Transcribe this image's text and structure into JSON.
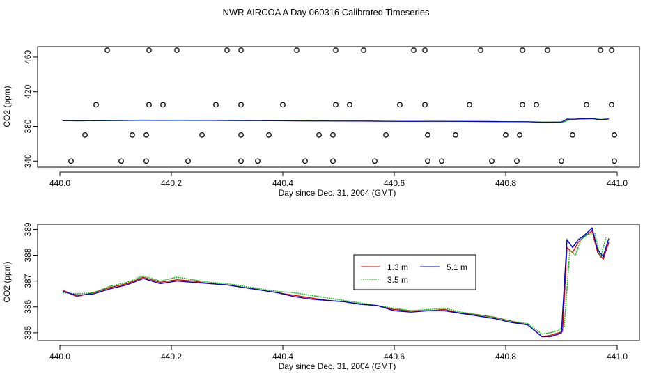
{
  "title": "NWR AIRCOA A  Day 060316  Calibrated Timeseries",
  "colors": {
    "series_1_3": "#e00000",
    "series_3_5": "#00c000",
    "series_5_1": "#0000d0",
    "axis": "#000000",
    "flags": "#000000"
  },
  "chart_data": [
    {
      "type": "scatter",
      "xlabel": "Day since Dec. 31, 2004 (GMT)",
      "ylabel": "CO2 (ppm)",
      "xlim": [
        440.0,
        441.0
      ],
      "ylim": [
        333,
        472
      ],
      "xticks": [
        "440.0",
        "440.2",
        "440.4",
        "440.6",
        "440.8",
        "441.0"
      ],
      "yticks": [
        "340",
        "380",
        "420",
        "460"
      ],
      "flag_points": [
        [
          440.02,
          340
        ],
        [
          440.11,
          340
        ],
        [
          440.155,
          340
        ],
        [
          440.23,
          340
        ],
        [
          440.325,
          340
        ],
        [
          440.355,
          340
        ],
        [
          440.44,
          340
        ],
        [
          440.49,
          340
        ],
        [
          440.565,
          340
        ],
        [
          440.66,
          340
        ],
        [
          440.685,
          340
        ],
        [
          440.775,
          340
        ],
        [
          440.82,
          340
        ],
        [
          440.9,
          340
        ],
        [
          440.995,
          340
        ],
        [
          440.045,
          370
        ],
        [
          440.13,
          370
        ],
        [
          440.155,
          370
        ],
        [
          440.255,
          370
        ],
        [
          440.325,
          370
        ],
        [
          440.375,
          370
        ],
        [
          440.465,
          370
        ],
        [
          440.49,
          370
        ],
        [
          440.585,
          370
        ],
        [
          440.66,
          370
        ],
        [
          440.71,
          370
        ],
        [
          440.8,
          370
        ],
        [
          440.825,
          370
        ],
        [
          440.92,
          370
        ],
        [
          440.995,
          370
        ],
        [
          440.065,
          405
        ],
        [
          440.16,
          405
        ],
        [
          440.185,
          405
        ],
        [
          440.28,
          405
        ],
        [
          440.325,
          405
        ],
        [
          440.4,
          405
        ],
        [
          440.495,
          405
        ],
        [
          440.52,
          405
        ],
        [
          440.61,
          405
        ],
        [
          440.655,
          405
        ],
        [
          440.735,
          405
        ],
        [
          440.83,
          405
        ],
        [
          440.855,
          405
        ],
        [
          440.945,
          405
        ],
        [
          440.99,
          405
        ],
        [
          440.085,
          468
        ],
        [
          440.16,
          468
        ],
        [
          440.21,
          468
        ],
        [
          440.3,
          468
        ],
        [
          440.325,
          468
        ],
        [
          440.425,
          468
        ],
        [
          440.495,
          468
        ],
        [
          440.545,
          468
        ],
        [
          440.635,
          468
        ],
        [
          440.655,
          468
        ],
        [
          440.755,
          468
        ],
        [
          440.83,
          468
        ],
        [
          440.875,
          468
        ],
        [
          440.97,
          468
        ],
        [
          440.99,
          468
        ]
      ]
    },
    {
      "type": "line",
      "xlabel": "Day since Dec. 31, 2004 (GMT)",
      "ylabel": "CO2 (ppm)",
      "xlim": [
        440.0,
        441.0
      ],
      "ylim": [
        384.7,
        389.2
      ],
      "xticks": [
        "440.0",
        "440.2",
        "440.4",
        "440.6",
        "440.8",
        "441.0"
      ],
      "yticks": [
        "385",
        "386",
        "387",
        "388",
        "389"
      ],
      "legend": {
        "position": "center-right"
      },
      "series": [
        {
          "name": "1.3 m",
          "x": [
            440.005,
            440.03,
            440.06,
            440.09,
            440.12,
            440.15,
            440.18,
            440.21,
            440.24,
            440.27,
            440.3,
            440.33,
            440.36,
            440.39,
            440.42,
            440.45,
            440.48,
            440.51,
            440.54,
            440.57,
            440.6,
            440.63,
            440.66,
            440.69,
            440.72,
            440.75,
            440.78,
            440.81,
            440.84,
            440.865,
            440.88,
            440.895,
            440.902,
            440.91,
            440.92,
            440.93,
            440.94,
            440.955,
            440.965,
            440.975,
            440.985
          ],
          "values": [
            386.65,
            386.4,
            386.55,
            386.75,
            386.9,
            387.15,
            386.95,
            387.05,
            387.0,
            386.9,
            386.85,
            386.75,
            386.65,
            386.55,
            386.45,
            386.35,
            386.25,
            386.2,
            386.1,
            386.05,
            385.9,
            385.85,
            385.85,
            385.9,
            385.75,
            385.7,
            385.6,
            385.45,
            385.3,
            384.85,
            384.9,
            385.0,
            385.05,
            388.3,
            388.1,
            388.5,
            388.7,
            388.95,
            388.1,
            387.85,
            388.5
          ]
        },
        {
          "name": "3.5 m",
          "x": [
            440.005,
            440.03,
            440.06,
            440.09,
            440.12,
            440.15,
            440.18,
            440.21,
            440.24,
            440.27,
            440.3,
            440.33,
            440.36,
            440.39,
            440.42,
            440.45,
            440.48,
            440.51,
            440.54,
            440.57,
            440.6,
            440.63,
            440.66,
            440.69,
            440.72,
            440.75,
            440.78,
            440.81,
            440.84,
            440.865,
            440.88,
            440.895,
            440.905,
            440.915,
            440.925,
            440.935,
            440.945,
            440.96,
            440.97,
            440.98
          ],
          "values": [
            386.55,
            386.5,
            386.55,
            386.8,
            386.95,
            387.2,
            387.0,
            387.15,
            387.05,
            386.95,
            386.9,
            386.8,
            386.7,
            386.6,
            386.55,
            386.45,
            386.35,
            386.25,
            386.15,
            386.05,
            385.95,
            385.85,
            385.9,
            385.95,
            385.8,
            385.7,
            385.6,
            385.45,
            385.35,
            384.95,
            385.0,
            385.1,
            385.25,
            388.2,
            388.0,
            388.6,
            388.8,
            388.85,
            387.9,
            388.7
          ]
        },
        {
          "name": "5.1 m",
          "x": [
            440.005,
            440.03,
            440.06,
            440.09,
            440.12,
            440.15,
            440.18,
            440.21,
            440.24,
            440.27,
            440.3,
            440.33,
            440.36,
            440.39,
            440.42,
            440.45,
            440.48,
            440.51,
            440.54,
            440.57,
            440.6,
            440.63,
            440.66,
            440.69,
            440.72,
            440.75,
            440.78,
            440.81,
            440.84,
            440.865,
            440.88,
            440.895,
            440.9,
            440.91,
            440.92,
            440.93,
            440.94,
            440.955,
            440.965,
            440.975,
            440.985
          ],
          "values": [
            386.6,
            386.45,
            386.5,
            386.7,
            386.85,
            387.1,
            386.9,
            387.0,
            386.95,
            386.9,
            386.85,
            386.75,
            386.65,
            386.55,
            386.4,
            386.3,
            386.25,
            386.2,
            386.1,
            386.05,
            385.85,
            385.8,
            385.85,
            385.85,
            385.75,
            385.65,
            385.55,
            385.4,
            385.3,
            384.85,
            384.85,
            384.95,
            385.0,
            388.6,
            388.3,
            388.6,
            388.75,
            389.05,
            388.2,
            387.95,
            388.65
          ]
        }
      ]
    }
  ]
}
